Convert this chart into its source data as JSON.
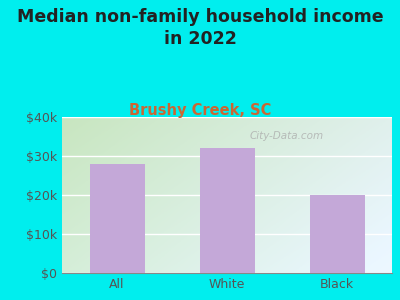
{
  "categories": [
    "All",
    "White",
    "Black"
  ],
  "values": [
    28000,
    32000,
    20000
  ],
  "bar_color": "#C4A8D8",
  "title": "Median non-family household income\nin 2022",
  "subtitle": "Brushy Creek, SC",
  "subtitle_color": "#CC6633",
  "title_color": "#222222",
  "background_color": "#00EEEE",
  "ylim": [
    0,
    40000
  ],
  "yticks": [
    0,
    10000,
    20000,
    30000,
    40000
  ],
  "ytick_labels": [
    "$0",
    "$10k",
    "$20k",
    "$30k",
    "$40k"
  ],
  "watermark": "City-Data.com",
  "title_fontsize": 12.5,
  "subtitle_fontsize": 10.5,
  "tick_fontsize": 9,
  "axis_tick_color": "#555555",
  "grid_color": "#ffffff",
  "plot_bg_color_top_left": "#C8E6C0",
  "plot_bg_color_bottom_right": "#E8F5F0"
}
